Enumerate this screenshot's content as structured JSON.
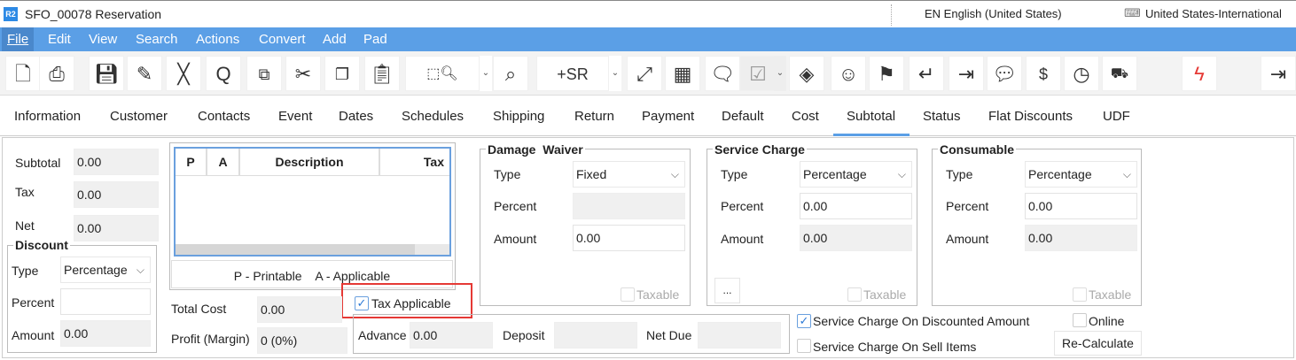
{
  "window": {
    "title": "SFO_00078 Reservation",
    "logo": "R2",
    "language": "EN English (United States)",
    "keyboard": "United States-International",
    "keyboard_icon": "keyboard-icon"
  },
  "menu": [
    "File",
    "Edit",
    "View",
    "Search",
    "Actions",
    "Convert",
    "Add",
    "Pad"
  ],
  "toolbar": {
    "sr_label": "+SR",
    "icons": [
      "new-document-icon",
      "print-icon",
      "save-icon",
      "pencil-icon",
      "close-icon",
      "search-icon",
      "copy-zero-icon",
      "cut-icon",
      "copy-icon",
      "clipboard-icon",
      "package-search-icon",
      "search-window-icon",
      "expand-icon",
      "grid-icon",
      "comment-icon",
      "calendar-check-icon",
      "layers-icon",
      "smiley-icon",
      "flag-icon",
      "return-icon",
      "import-box-icon",
      "speech-zero-icon",
      "invoice-dollar-icon",
      "clock-dollar-icon",
      "truck-icon",
      "lightning-icon",
      "exit-icon"
    ],
    "lightning_color": "#e53935"
  },
  "tabs": [
    "Information",
    "Customer",
    "Contacts",
    "Event",
    "Dates",
    "Schedules",
    "Shipping",
    "Return",
    "Payment",
    "Default",
    "Cost",
    "Subtotal",
    "Status",
    "Flat Discounts",
    "UDF"
  ],
  "active_tab": "Subtotal",
  "summary": {
    "subtotal_label": "Subtotal",
    "subtotal": "0.00",
    "tax_label": "Tax",
    "tax": "0.00",
    "net_label": "Net",
    "net": "0.00"
  },
  "discount": {
    "title": "Discount",
    "type_label": "Type",
    "type": "Percentage",
    "percent_label": "Percent",
    "percent": "",
    "amount_label": "Amount",
    "amount": "0.00"
  },
  "tax_table": {
    "columns": [
      "P",
      "A",
      "Description",
      "Tax"
    ],
    "rows": [],
    "legend": "P - Printable    A - Applicable"
  },
  "tax_applicable": {
    "label": "Tax Applicable",
    "checked": true
  },
  "costs": {
    "total_cost_label": "Total Cost",
    "total_cost": "0.00",
    "profit_label": "Profit (Margin)",
    "profit": "0 (0%)"
  },
  "payment": {
    "advance_label": "Advance",
    "advance": "0.00",
    "deposit_label": "Deposit",
    "deposit": "",
    "net_due_label": "Net Due",
    "net_due": ""
  },
  "damage_waiver": {
    "title": "Damage  Waiver",
    "type_label": "Type",
    "type": "Fixed",
    "percent_label": "Percent",
    "percent": "",
    "amount_label": "Amount",
    "amount": "0.00",
    "taxable_label": "Taxable"
  },
  "service_charge": {
    "title": "Service Charge",
    "type_label": "Type",
    "type": "Percentage",
    "percent_label": "Percent",
    "percent": "0.00",
    "amount_label": "Amount",
    "amount": "0.00",
    "taxable_label": "Taxable",
    "more_label": "..."
  },
  "consumable": {
    "title": "Consumable",
    "type_label": "Type",
    "type": "Percentage",
    "percent_label": "Percent",
    "percent": "0.00",
    "amount_label": "Amount",
    "amount": "0.00",
    "taxable_label": "Taxable"
  },
  "options": {
    "sc_discounted_label": "Service Charge On Discounted Amount",
    "sc_discounted": true,
    "sc_sell_label": "Service Charge On Sell Items",
    "sc_sell": false,
    "online_label": "Online",
    "online": false,
    "recalculate_label": "Re-Calculate"
  },
  "highlight_color": "#e53935",
  "accent_color": "#5b9fe6"
}
